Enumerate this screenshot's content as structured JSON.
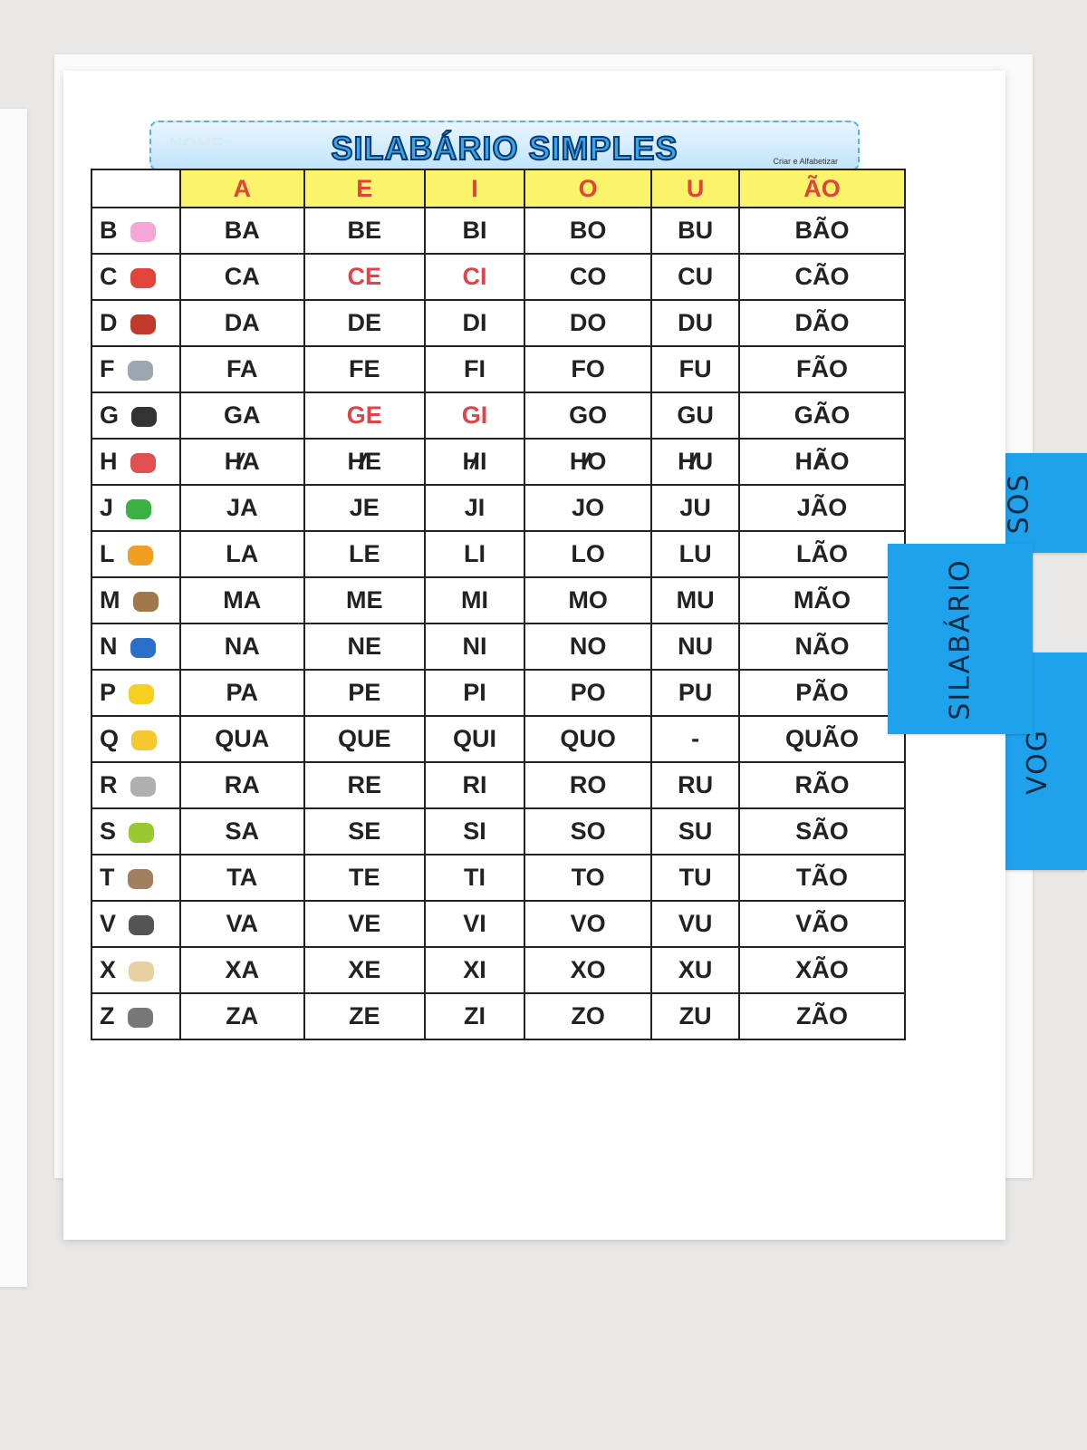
{
  "header": {
    "name_placeholder": "NOME:",
    "title": "SILABÁRIO SIMPLES",
    "credit": "Criar e Alfabetizar"
  },
  "table": {
    "columns": [
      "A",
      "E",
      "I",
      "O",
      "U",
      "ÃO"
    ],
    "rows": [
      {
        "letter": "B",
        "cells": [
          "BA",
          "BE",
          "BI",
          "BO",
          "BU",
          "BÃO"
        ]
      },
      {
        "letter": "C",
        "cells": [
          "CA",
          "CE",
          "CI",
          "CO",
          "CU",
          "CÃO"
        ],
        "red": [
          1,
          2
        ]
      },
      {
        "letter": "D",
        "cells": [
          "DA",
          "DE",
          "DI",
          "DO",
          "DU",
          "DÃO"
        ]
      },
      {
        "letter": "F",
        "cells": [
          "FA",
          "FE",
          "FI",
          "FO",
          "FU",
          "FÃO"
        ]
      },
      {
        "letter": "G",
        "cells": [
          "GA",
          "GE",
          "GI",
          "GO",
          "GU",
          "GÃO"
        ],
        "red": [
          1,
          2
        ]
      },
      {
        "letter": "H",
        "cells": [
          "HA",
          "HE",
          "HI",
          "HO",
          "HU",
          "HÃO"
        ],
        "struck": true
      },
      {
        "letter": "J",
        "cells": [
          "JA",
          "JE",
          "JI",
          "JO",
          "JU",
          "JÃO"
        ]
      },
      {
        "letter": "L",
        "cells": [
          "LA",
          "LE",
          "LI",
          "LO",
          "LU",
          "LÃO"
        ]
      },
      {
        "letter": "M",
        "cells": [
          "MA",
          "ME",
          "MI",
          "MO",
          "MU",
          "MÃO"
        ]
      },
      {
        "letter": "N",
        "cells": [
          "NA",
          "NE",
          "NI",
          "NO",
          "NU",
          "NÃO"
        ]
      },
      {
        "letter": "P",
        "cells": [
          "PA",
          "PE",
          "PI",
          "PO",
          "PU",
          "PÃO"
        ]
      },
      {
        "letter": "Q",
        "cells": [
          "QUA",
          "QUE",
          "QUI",
          "QUO",
          "-",
          "QUÃO"
        ]
      },
      {
        "letter": "R",
        "cells": [
          "RA",
          "RE",
          "RI",
          "RO",
          "RU",
          "RÃO"
        ]
      },
      {
        "letter": "S",
        "cells": [
          "SA",
          "SE",
          "SI",
          "SO",
          "SU",
          "SÃO"
        ]
      },
      {
        "letter": "T",
        "cells": [
          "TA",
          "TE",
          "TI",
          "TO",
          "TU",
          "TÃO"
        ]
      },
      {
        "letter": "V",
        "cells": [
          "VA",
          "VE",
          "VI",
          "VO",
          "VU",
          "VÃO"
        ]
      },
      {
        "letter": "X",
        "cells": [
          "XA",
          "XE",
          "XI",
          "XO",
          "XU",
          "XÃO"
        ]
      },
      {
        "letter": "Z",
        "cells": [
          "ZA",
          "ZE",
          "ZI",
          "ZO",
          "ZU",
          "ZÃO"
        ]
      }
    ]
  },
  "tabs": [
    "SILABÁRIO",
    "VOG",
    "SOS"
  ]
}
